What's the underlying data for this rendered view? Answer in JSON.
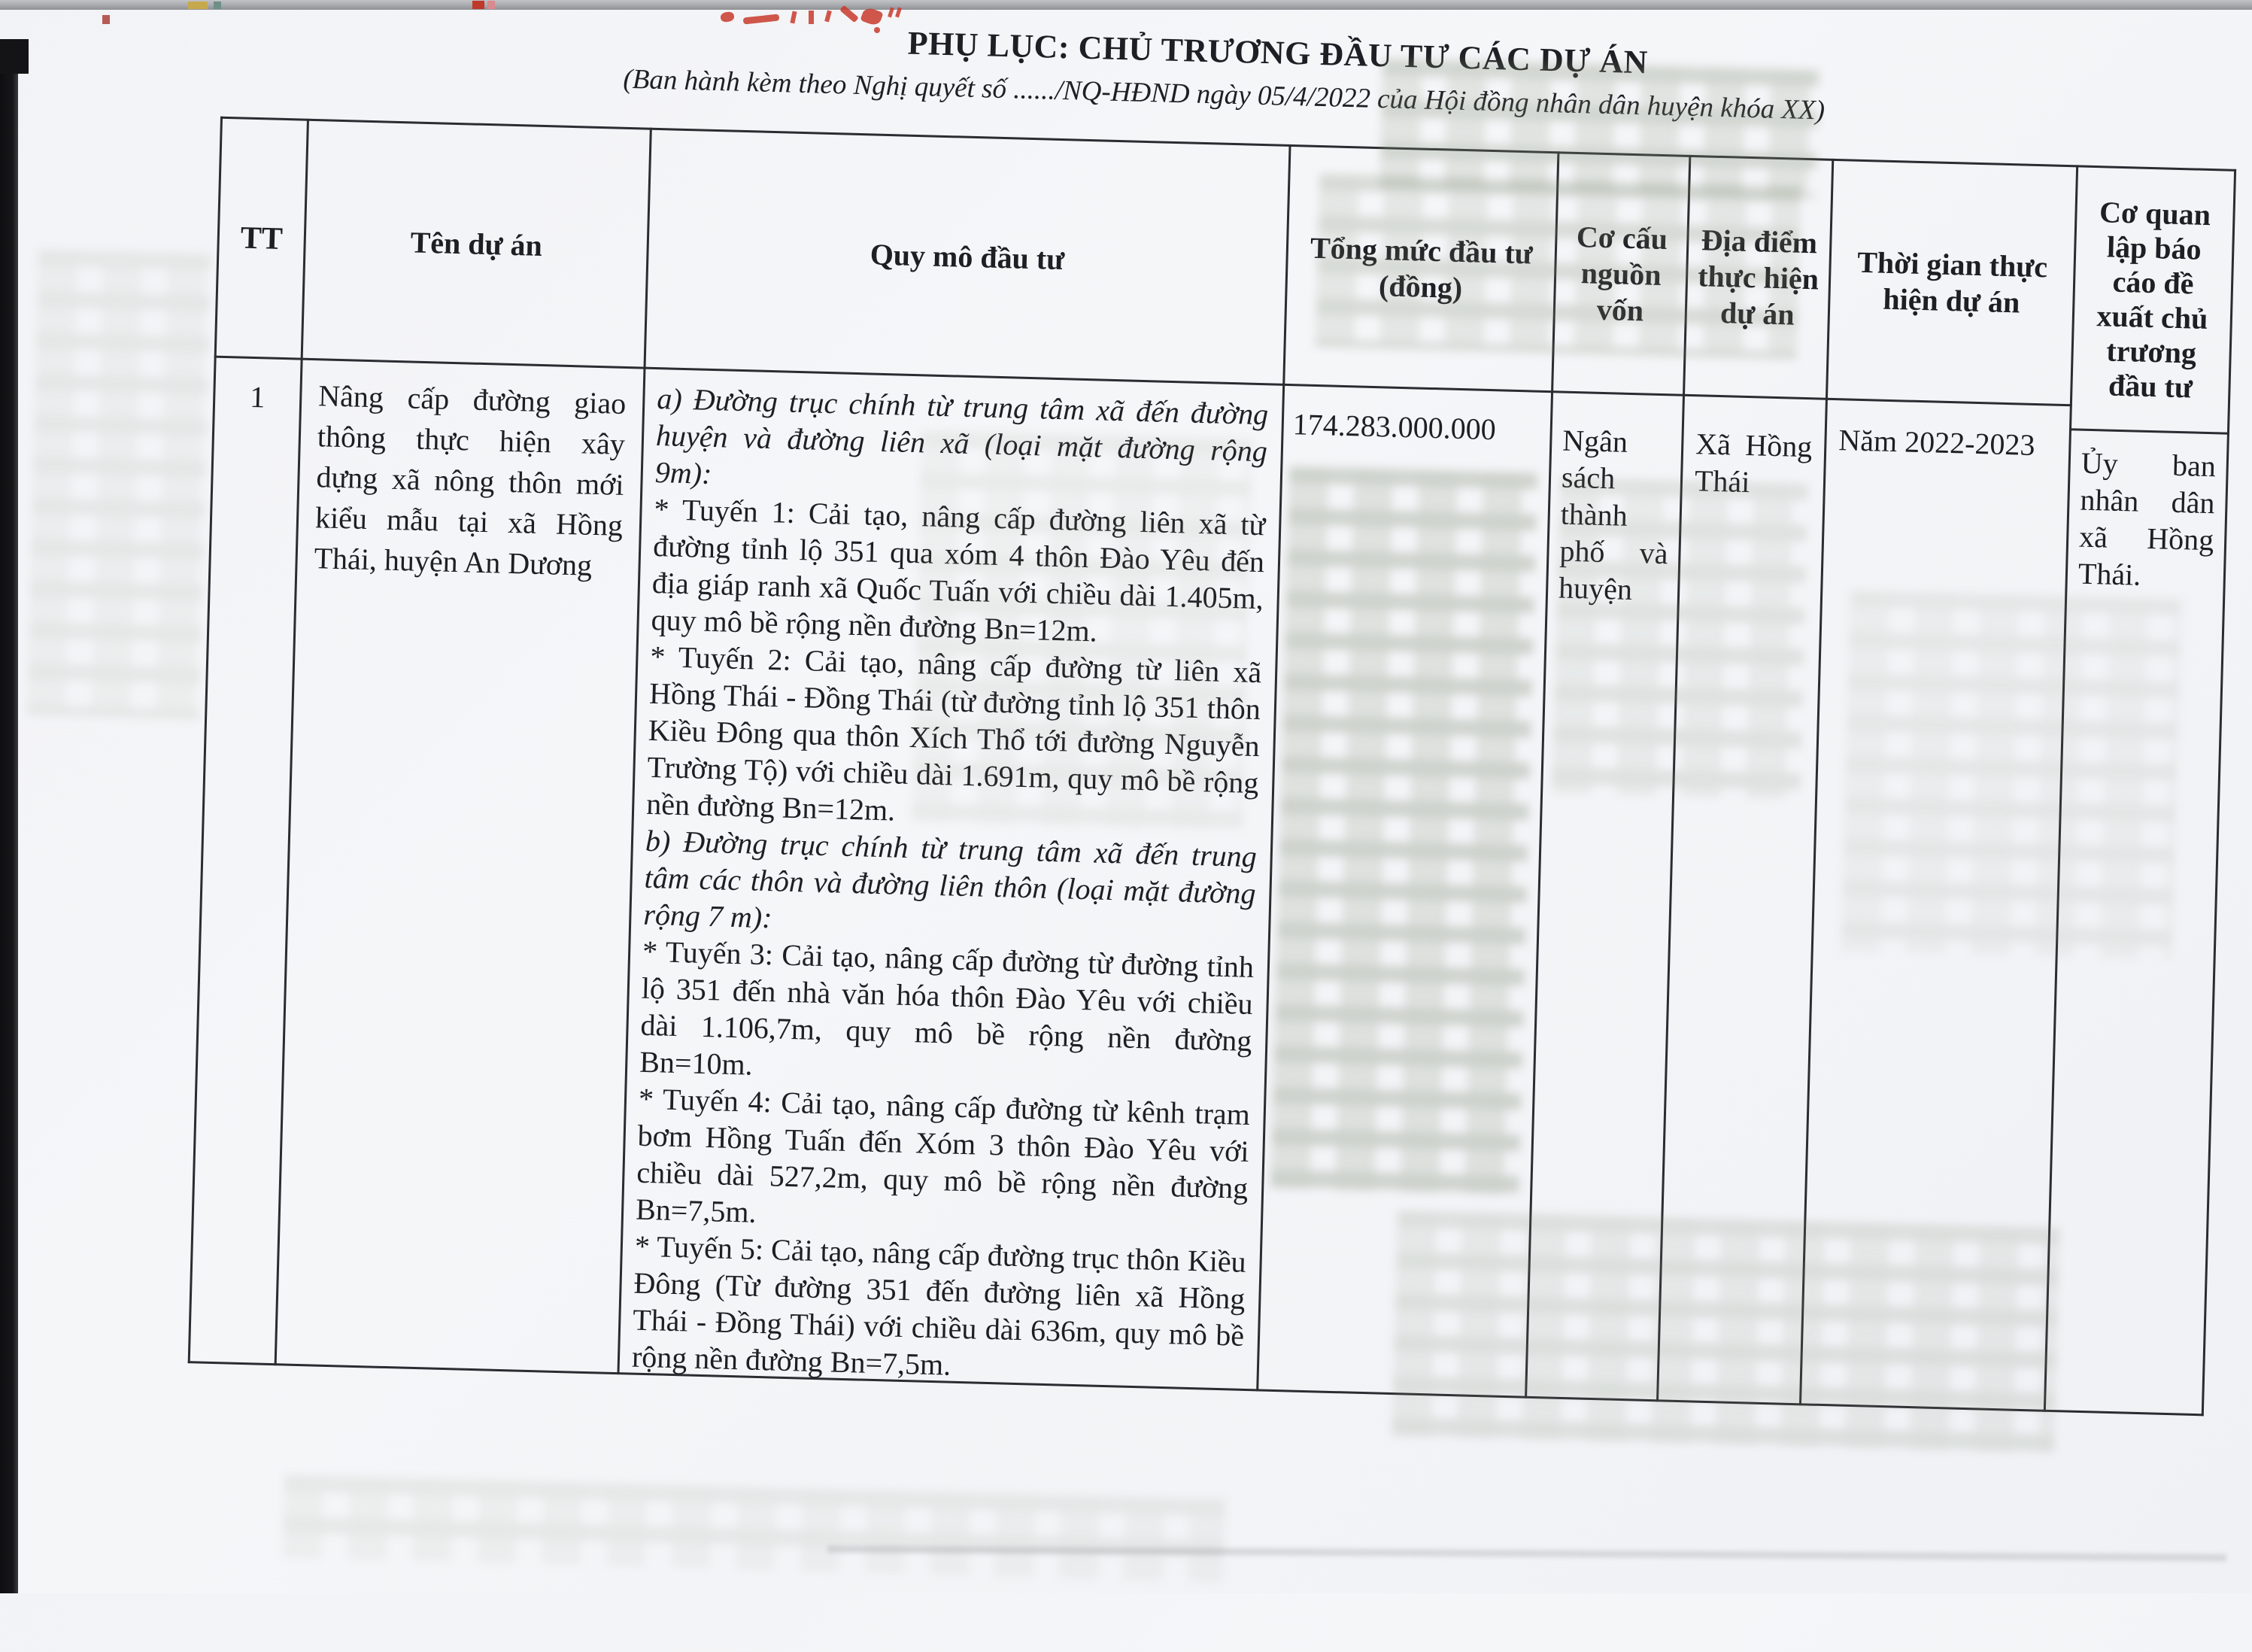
{
  "page": {
    "title": "PHỤ LỤC: CHỦ TRƯƠNG ĐẦU TƯ CÁC DỰ ÁN",
    "subtitle": "(Ban hành kèm theo Nghị quyết số ....../NQ-HĐND ngày 05/4/2022 của Hội đồng nhân dân huyện khóa XX)"
  },
  "table": {
    "headers": [
      "TT",
      "Tên dự án",
      "Quy mô đầu tư",
      "Tổng mức đầu tư (đồng)",
      "Cơ cấu nguồn vốn",
      "Địa điểm thực hiện dự án",
      "Thời gian thực hiện dự án",
      "Cơ quan lập báo cáo đề xuất chủ trương đầu tư"
    ],
    "rows": [
      {
        "tt": "1",
        "ten_du_an": "Nâng cấp đường giao thông thực hiện xây dựng xã nông thôn mới kiểu mẫu tại xã Hồng Thái, huyện An Dương",
        "quy_mo": [
          {
            "italic": true,
            "text": "a) Đường trục chính từ trung tâm xã đến đường huyện và đường liên xã (loại mặt đường rộng 9m):"
          },
          {
            "italic": false,
            "text": "* Tuyến 1: Cải tạo, nâng cấp đường liên xã từ đường tỉnh lộ 351 qua xóm 4 thôn Đào Yêu đến địa giáp ranh xã Quốc Tuấn với chiều dài 1.405m, quy mô bề rộng nền đường Bn=12m."
          },
          {
            "italic": false,
            "text": "* Tuyến 2: Cải tạo, nâng cấp đường từ liên xã Hồng Thái - Đồng Thái (từ đường tỉnh lộ 351 thôn Kiều Đông qua thôn Xích Thổ tới đường Nguyễn Trường Tộ) với chiều dài 1.691m, quy mô bề rộng nền đường Bn=12m."
          },
          {
            "italic": true,
            "text": "b) Đường trục chính từ trung tâm xã đến trung tâm các thôn và đường liên thôn (loại mặt đường rộng 7 m):"
          },
          {
            "italic": false,
            "text": "* Tuyến 3: Cải tạo, nâng cấp đường từ đường tỉnh lộ 351 đến nhà văn hóa thôn Đào Yêu với chiều dài 1.106,7m, quy mô bề rộng nền đường Bn=10m."
          },
          {
            "italic": false,
            "text": "* Tuyến 4: Cải tạo, nâng cấp đường từ kênh trạm bơm Hồng Tuấn đến Xóm 3 thôn Đào Yêu với chiều dài 527,2m, quy mô bề rộng nền đường Bn=7,5m."
          },
          {
            "italic": false,
            "text": "* Tuyến 5: Cải tạo, nâng cấp đường trục thôn Kiều Đông (Từ đường 351 đến đường liên xã Hồng Thái - Đồng Thái) với chiều dài 636m, quy mô bề rộng nền đường Bn=7,5m."
          }
        ],
        "tong_muc": "174.283.000.000",
        "co_cau": "Ngân sách thành phố và huyện",
        "dia_diem": "Xã Hồng Thái",
        "thoi_gian": "Năm 2022-2023",
        "co_quan": "Ủy ban nhân dân xã Hồng Thái."
      }
    ]
  },
  "colors": {
    "paper": "#f3f4f7",
    "ink": "#1e1f24",
    "border": "#2b2c31",
    "accent_red": "#c8392b",
    "scan_edge": "#141416",
    "scan_strip": "#a7a9ad",
    "ghost": "#7d8a70"
  }
}
